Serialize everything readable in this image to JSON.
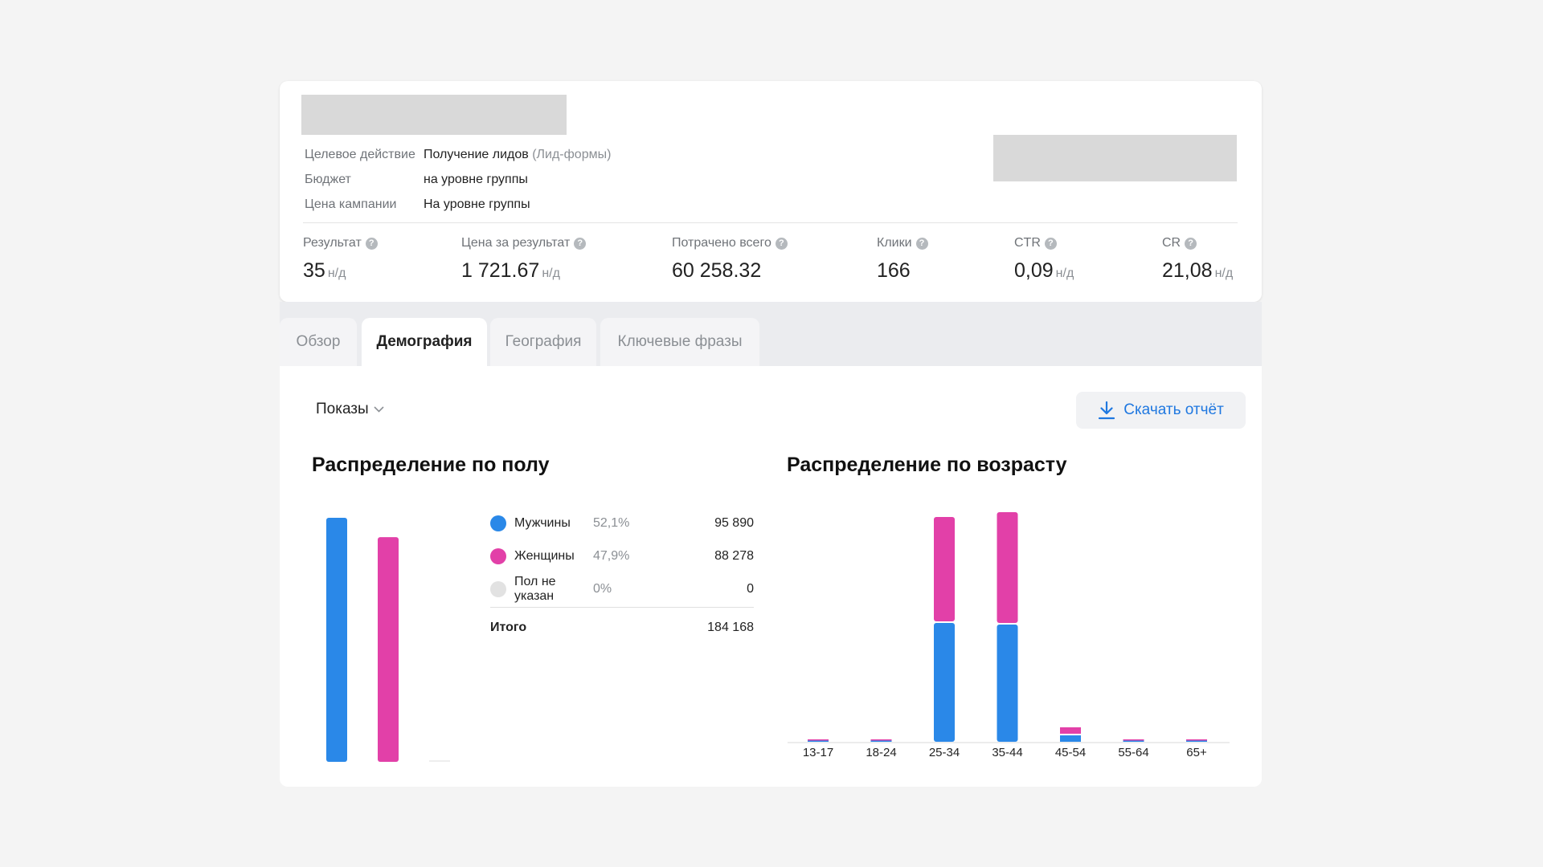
{
  "campaign": {
    "info": [
      {
        "label": "Целевое действие",
        "value": "Получение лидов",
        "extra": "(Лид-формы)"
      },
      {
        "label": "Бюджет",
        "value": "на уровне группы",
        "extra": ""
      },
      {
        "label": "Цена кампании",
        "value": "На уровне группы",
        "extra": ""
      }
    ],
    "metrics": [
      {
        "label": "Результат",
        "value": "35",
        "na": "н/д"
      },
      {
        "label": "Цена за результат",
        "value": "1 721.67",
        "na": "н/д"
      },
      {
        "label": "Потрачено всего",
        "value": "60 258.32",
        "na": ""
      },
      {
        "label": "Клики",
        "value": "166",
        "na": ""
      },
      {
        "label": "CTR",
        "value": "0,09",
        "na": "н/д"
      },
      {
        "label": "CR",
        "value": "21,08",
        "na": "н/д"
      }
    ],
    "help_icon_glyph": "?"
  },
  "tabs": [
    {
      "label": "Обзор",
      "active": false
    },
    {
      "label": "Демография",
      "active": true
    },
    {
      "label": "География",
      "active": false
    },
    {
      "label": "Ключевые фразы",
      "active": false
    }
  ],
  "toolbar": {
    "metric_select": "Показы",
    "download_label": "Скачать отчёт",
    "download_icon": "download-icon"
  },
  "colors": {
    "male": "#2a88e8",
    "female": "#e240a8",
    "unknown": "#e2e2e2",
    "accent": "#1f78e0"
  },
  "gender": {
    "title": "Распределение по полу",
    "rows": [
      {
        "name": "Мужчины",
        "pct": "52,1%",
        "value": "95 890"
      },
      {
        "name": "Женщины",
        "pct": "47,9%",
        "value": "88 278"
      },
      {
        "name": "Пол не указан",
        "pct": "0%",
        "value": "0"
      }
    ],
    "total_label": "Итого",
    "total_value": "184 168"
  },
  "age": {
    "title": "Распределение по возрасту"
  },
  "chart_data": [
    {
      "type": "bar",
      "categories": [
        "",
        "",
        ""
      ],
      "values": [
        95890,
        88278,
        0
      ]
    },
    {
      "type": "bar",
      "stacked": true,
      "categories": [
        "13-17",
        "18-24",
        "25-34",
        "35-44",
        "45-54",
        "55-64",
        "65+"
      ],
      "series": [
        {
          "values": [
            400,
            400,
            74000,
            73000,
            4000,
            400,
            200
          ]
        },
        {
          "values": [
            300,
            300,
            65000,
            69000,
            4000,
            300,
            100
          ]
        }
      ],
      "ylim": [
        0,
        145000
      ],
      "grid": false
    }
  ]
}
